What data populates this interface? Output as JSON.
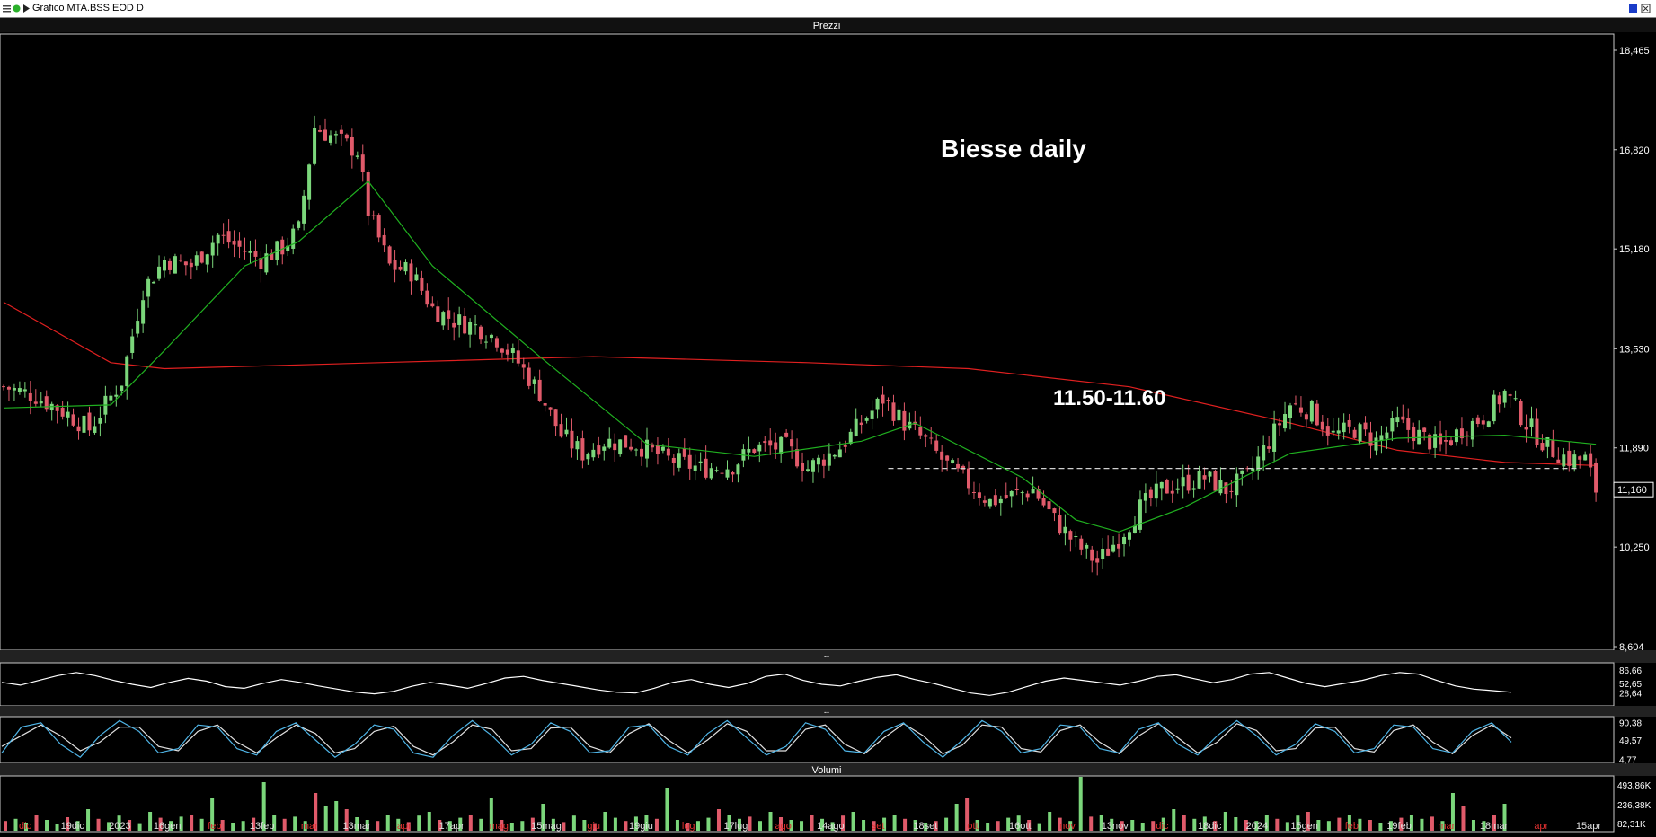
{
  "window": {
    "title": "Grafico MTA.BSS EOD D",
    "panel_titles": {
      "price": "Prezzi",
      "volume": "Volumi",
      "ind1": "--",
      "ind2": "--"
    }
  },
  "annotations": {
    "title": "Biesse daily",
    "support_label": "11.50-11.60",
    "support_level": 11.55
  },
  "colors": {
    "background": "#000000",
    "up_candle": "#7bd67b",
    "down_candle": "#e05a6a",
    "ma_long": "#e02020",
    "ma_short": "#20b020",
    "indicator1": "#ffffff",
    "indicator2_a": "#4fb4e6",
    "indicator2_b": "#e0e0e0",
    "month_label": "#e03030",
    "date_label": "#e0e0e0"
  },
  "chart_data": [
    {
      "type": "line",
      "title": "",
      "panel": "Prezzi",
      "ylim": [
        8.604,
        18.465
      ],
      "y_ticks": [
        "18,465",
        "16,820",
        "15,180",
        "13,530",
        "11,890",
        "10,250",
        "8,604"
      ],
      "current_price_label": "11,160",
      "x_labels": [
        {
          "text": "dic",
          "month": true
        },
        {
          "text": "19dic",
          "month": false
        },
        {
          "text": "2023",
          "month": false
        },
        {
          "text": "16gen",
          "month": false
        },
        {
          "text": "feb",
          "month": true
        },
        {
          "text": "13feb",
          "month": false
        },
        {
          "text": "mar",
          "month": true
        },
        {
          "text": "13mar",
          "month": false
        },
        {
          "text": "apr",
          "month": true
        },
        {
          "text": "17apr",
          "month": false
        },
        {
          "text": "mag",
          "month": true
        },
        {
          "text": "15mag",
          "month": false
        },
        {
          "text": "giu",
          "month": true
        },
        {
          "text": "19giu",
          "month": false
        },
        {
          "text": "lug",
          "month": true
        },
        {
          "text": "17lug",
          "month": false
        },
        {
          "text": "ago",
          "month": true
        },
        {
          "text": "14ago",
          "month": false
        },
        {
          "text": "set",
          "month": true
        },
        {
          "text": "18set",
          "month": false
        },
        {
          "text": "ott",
          "month": true
        },
        {
          "text": "16ott",
          "month": false
        },
        {
          "text": "nov",
          "month": true
        },
        {
          "text": "13nov",
          "month": false
        },
        {
          "text": "dic",
          "month": true
        },
        {
          "text": "18dic",
          "month": false
        },
        {
          "text": "2024",
          "month": false
        },
        {
          "text": "15gen",
          "month": false
        },
        {
          "text": "feb",
          "month": true
        },
        {
          "text": "19feb",
          "month": false
        },
        {
          "text": "mar",
          "month": true
        },
        {
          "text": "18mar",
          "month": false
        },
        {
          "text": "apr",
          "month": true
        },
        {
          "text": "15apr",
          "month": false
        }
      ],
      "close_path": [
        [
          0,
          12.9
        ],
        [
          6,
          12.75
        ],
        [
          12,
          12.45
        ],
        [
          16,
          12.2
        ],
        [
          22,
          13.0
        ],
        [
          26,
          14.5
        ],
        [
          30,
          15.0
        ],
        [
          35,
          14.9
        ],
        [
          40,
          15.4
        ],
        [
          44,
          15.2
        ],
        [
          48,
          15.0
        ],
        [
          52,
          15.2
        ],
        [
          55,
          15.5
        ],
        [
          58,
          17.2
        ],
        [
          62,
          17.0
        ],
        [
          66,
          16.8
        ],
        [
          68,
          15.8
        ],
        [
          72,
          14.9
        ],
        [
          76,
          14.8
        ],
        [
          80,
          14.2
        ],
        [
          84,
          14.0
        ],
        [
          88,
          13.9
        ],
        [
          92,
          13.7
        ],
        [
          96,
          13.3
        ],
        [
          100,
          12.8
        ],
        [
          104,
          12.1
        ],
        [
          108,
          11.8
        ],
        [
          112,
          12.0
        ],
        [
          118,
          11.95
        ],
        [
          124,
          11.7
        ],
        [
          130,
          11.55
        ],
        [
          136,
          11.6
        ],
        [
          140,
          11.9
        ],
        [
          146,
          11.9
        ],
        [
          150,
          11.55
        ],
        [
          156,
          11.9
        ],
        [
          160,
          12.3
        ],
        [
          164,
          12.7
        ],
        [
          168,
          12.3
        ],
        [
          172,
          12.0
        ],
        [
          176,
          11.6
        ],
        [
          180,
          11.3
        ],
        [
          184,
          11.0
        ],
        [
          188,
          11.1
        ],
        [
          192,
          11.2
        ],
        [
          196,
          10.7
        ],
        [
          200,
          10.3
        ],
        [
          204,
          10.0
        ],
        [
          208,
          10.4
        ],
        [
          212,
          10.9
        ],
        [
          216,
          11.2
        ],
        [
          220,
          11.3
        ],
        [
          224,
          11.4
        ],
        [
          228,
          11.2
        ],
        [
          232,
          11.4
        ],
        [
          236,
          12.0
        ],
        [
          240,
          12.6
        ],
        [
          244,
          12.5
        ],
        [
          248,
          12.1
        ],
        [
          252,
          12.2
        ],
        [
          256,
          12.0
        ],
        [
          260,
          12.3
        ],
        [
          264,
          12.1
        ],
        [
          268,
          11.9
        ],
        [
          272,
          12.2
        ],
        [
          276,
          12.4
        ],
        [
          280,
          12.8
        ],
        [
          284,
          12.3
        ],
        [
          288,
          11.9
        ],
        [
          292,
          11.7
        ],
        [
          295,
          11.7
        ],
        [
          297,
          11.2
        ]
      ],
      "series": [
        {
          "name": "",
          "kind": "ma_long",
          "values": [
            [
              0,
              14.3
            ],
            [
              20,
              13.3
            ],
            [
              30,
              13.2
            ],
            [
              70,
              13.3
            ],
            [
              110,
              13.4
            ],
            [
              150,
              13.3
            ],
            [
              180,
              13.2
            ],
            [
              210,
              12.9
            ],
            [
              240,
              12.3
            ],
            [
              260,
              11.85
            ],
            [
              280,
              11.65
            ],
            [
              297,
              11.6
            ]
          ]
        },
        {
          "name": "",
          "kind": "ma_short",
          "values": [
            [
              0,
              12.55
            ],
            [
              20,
              12.6
            ],
            [
              30,
              13.5
            ],
            [
              45,
              14.9
            ],
            [
              55,
              15.3
            ],
            [
              68,
              16.3
            ],
            [
              80,
              14.9
            ],
            [
              100,
              13.4
            ],
            [
              120,
              11.95
            ],
            [
              140,
              11.75
            ],
            [
              160,
              12.0
            ],
            [
              170,
              12.3
            ],
            [
              190,
              11.4
            ],
            [
              200,
              10.7
            ],
            [
              208,
              10.5
            ],
            [
              220,
              10.9
            ],
            [
              240,
              11.8
            ],
            [
              260,
              12.05
            ],
            [
              280,
              12.1
            ],
            [
              297,
              11.95
            ]
          ]
        }
      ]
    },
    {
      "type": "line",
      "title": "",
      "panel": "indicator-1",
      "y_ticks": [
        "86,66",
        "52,65",
        "28,64"
      ],
      "values": [
        55,
        48,
        60,
        72,
        80,
        72,
        60,
        50,
        42,
        55,
        65,
        58,
        44,
        40,
        52,
        62,
        55,
        46,
        38,
        30,
        26,
        32,
        45,
        55,
        48,
        40,
        52,
        66,
        70,
        60,
        52,
        44,
        36,
        30,
        28,
        40,
        55,
        62,
        50,
        42,
        52,
        70,
        76,
        60,
        50,
        46,
        58,
        68,
        74,
        62,
        52,
        40,
        28,
        22,
        30,
        44,
        58,
        66,
        60,
        54,
        48,
        58,
        70,
        74,
        64,
        54,
        62,
        76,
        80,
        66,
        52,
        44,
        52,
        60,
        72,
        80,
        76,
        60,
        46,
        38,
        34,
        30
      ]
    },
    {
      "type": "line",
      "title": "",
      "panel": "indicator-2",
      "y_ticks": [
        "90,38",
        "49,57",
        "4,77"
      ],
      "series": [
        {
          "name": "",
          "kind": "indicator2_a",
          "values": [
            20,
            80,
            90,
            40,
            10,
            60,
            95,
            70,
            20,
            30,
            85,
            80,
            30,
            15,
            70,
            90,
            50,
            10,
            40,
            85,
            75,
            20,
            10,
            60,
            95,
            60,
            15,
            40,
            90,
            70,
            20,
            25,
            80,
            85,
            35,
            15,
            65,
            95,
            55,
            15,
            35,
            90,
            75,
            25,
            20,
            70,
            90,
            45,
            10,
            50,
            95,
            70,
            20,
            30,
            85,
            80,
            30,
            20,
            75,
            90,
            40,
            15,
            60,
            95,
            60,
            15,
            40,
            88,
            70,
            20,
            30,
            85,
            80,
            30,
            20,
            70,
            90,
            45
          ]
        },
        {
          "name": "",
          "kind": "indicator2_b",
          "values": [
            35,
            60,
            85,
            60,
            25,
            45,
            80,
            80,
            35,
            25,
            70,
            85,
            45,
            20,
            55,
            85,
            65,
            20,
            30,
            70,
            82,
            35,
            15,
            45,
            85,
            75,
            25,
            30,
            78,
            80,
            35,
            20,
            65,
            88,
            50,
            20,
            50,
            88,
            70,
            25,
            25,
            75,
            85,
            40,
            18,
            55,
            88,
            60,
            18,
            38,
            85,
            80,
            30,
            22,
            72,
            85,
            45,
            18,
            60,
            88,
            55,
            20,
            45,
            88,
            72,
            25,
            30,
            78,
            80,
            30,
            22,
            72,
            85,
            45,
            18,
            60,
            85,
            55
          ]
        }
      ]
    },
    {
      "type": "bar",
      "title": "",
      "panel": "Volumi",
      "y_ticks": [
        "493,86K",
        "236,38K",
        "82,31K"
      ],
      "values": [
        18,
        22,
        15,
        30,
        20,
        12,
        25,
        18,
        40,
        22,
        16,
        28,
        20,
        14,
        35,
        24,
        18,
        26,
        30,
        22,
        60,
        20,
        15,
        18,
        24,
        90,
        30,
        22,
        26,
        18,
        70,
        45,
        55,
        40,
        25,
        20,
        18,
        30,
        22,
        16,
        28,
        35,
        20,
        18,
        24,
        30,
        22,
        60,
        20,
        15,
        18,
        24,
        50,
        22,
        16,
        28,
        20,
        14,
        35,
        24,
        18,
        26,
        30,
        22,
        80,
        20,
        15,
        18,
        24,
        40,
        30,
        22,
        26,
        18,
        35,
        25,
        20,
        18,
        30,
        22,
        16,
        28,
        35,
        20,
        18,
        24,
        30,
        22,
        20,
        15,
        18,
        24,
        50,
        60,
        20,
        15,
        18,
        24,
        28,
        20,
        14,
        35,
        24,
        18,
        100,
        26,
        30,
        22,
        18,
        20,
        15,
        18,
        24,
        40,
        30,
        22,
        26,
        18,
        35,
        25,
        20,
        18,
        30,
        22,
        16,
        28,
        35,
        20,
        18,
        24,
        30,
        22,
        20,
        15,
        18,
        24,
        30,
        22,
        26,
        18,
        70,
        45,
        20,
        18,
        30,
        50
      ]
    }
  ]
}
